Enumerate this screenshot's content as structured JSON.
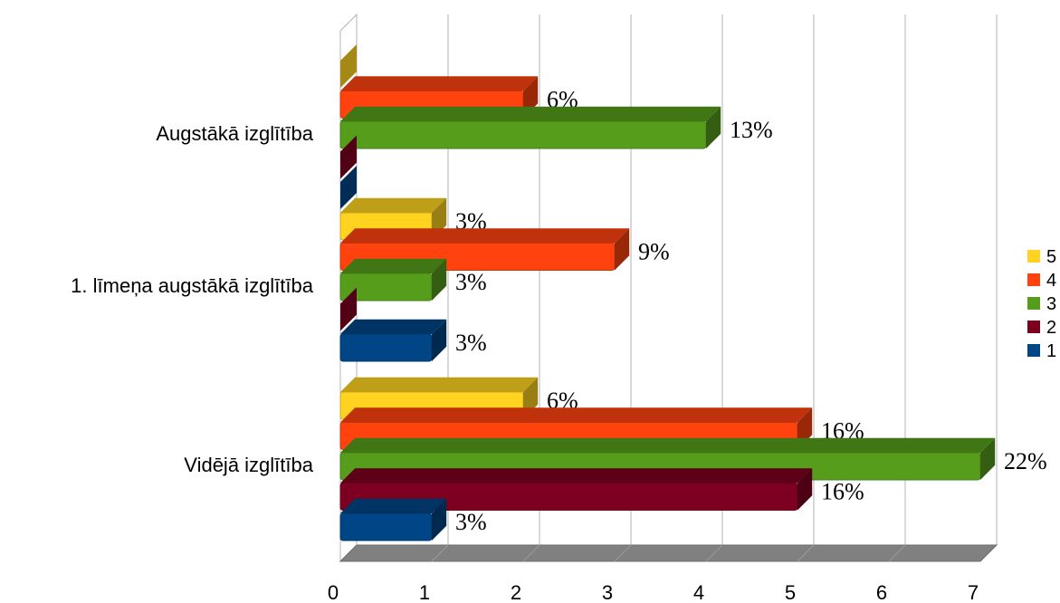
{
  "chart_data": {
    "type": "bar",
    "orientation": "horizontal",
    "style": "3d",
    "categories": [
      "Augstākā izglītība",
      "1. līmeņa augstākā izglītība",
      "Vidējā izglītība"
    ],
    "series": [
      {
        "name": "5",
        "color": "#ffd320",
        "values": [
          0,
          1,
          2
        ],
        "labels": [
          "",
          "3%",
          "6%"
        ]
      },
      {
        "name": "4",
        "color": "#ff420e",
        "values": [
          2,
          3,
          5
        ],
        "labels": [
          "6%",
          "9%",
          "16%"
        ]
      },
      {
        "name": "3",
        "color": "#579d1c",
        "values": [
          4,
          1,
          7
        ],
        "labels": [
          "13%",
          "3%",
          "22%"
        ]
      },
      {
        "name": "2",
        "color": "#7e0021",
        "values": [
          0,
          0,
          5
        ],
        "labels": [
          "",
          "",
          "16%"
        ]
      },
      {
        "name": "1",
        "color": "#004586",
        "values": [
          0,
          1,
          1
        ],
        "labels": [
          "",
          "3%",
          "3%"
        ]
      }
    ],
    "xlim": [
      0,
      7
    ],
    "x_ticks": [
      "0",
      "1",
      "2",
      "3",
      "4",
      "5",
      "6",
      "7"
    ],
    "grid": true,
    "legend_position": "right"
  }
}
